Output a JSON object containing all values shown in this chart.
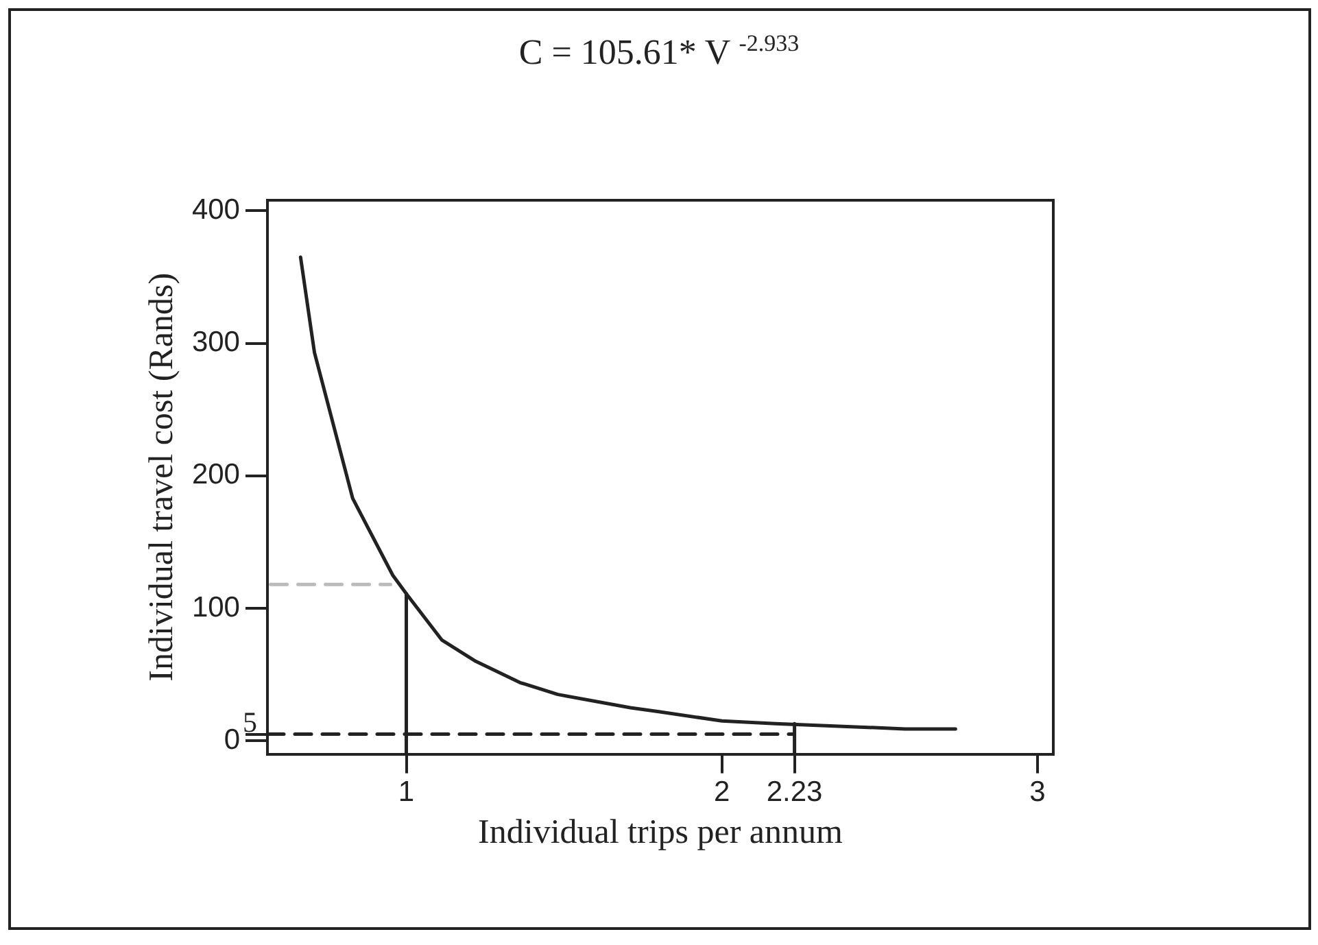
{
  "chart_data": {
    "type": "line",
    "title": "C = 105.61* V $^{-2.933}$",
    "xlabel": "Individual trips per annum",
    "ylabel": "Individual travel cost (Rands)",
    "xlim": [
      0.56,
      3.05
    ],
    "xticks": [
      1,
      2,
      2.23,
      3
    ],
    "ylim": [
      -10,
      408
    ],
    "yticks": [
      0,
      {
        "value": 5,
        "label": null
      },
      100,
      200,
      300,
      400
    ],
    "marker": "none",
    "annotations": [
      "5"
    ],
    "series": [
      {
        "color": "#222222",
        "line_style": "solid",
        "x": [
          0.665,
          0.709,
          0.83,
          0.957,
          1.0,
          1.113,
          1.22,
          1.36,
          1.48,
          1.71,
          1.8,
          2.0,
          2.17,
          2.58,
          2.74
        ],
        "values": [
          365,
          293,
          183,
          125,
          111,
          76,
          60,
          44,
          35,
          25,
          22,
          15,
          13,
          9,
          9
        ]
      },
      {
        "color": "#222222",
        "line_style": "dashed",
        "x": [
          0.56,
          2.23
        ],
        "values": [
          5,
          5
        ]
      },
      {
        "color": "#222222",
        "line_style": "solid",
        "x": [
          1,
          1
        ],
        "values": [
          -10,
          111
        ]
      },
      {
        "color": "#222222",
        "line_style": "solid",
        "x": [
          2.23,
          2.23
        ],
        "values": [
          -10,
          13
        ]
      },
      {
        "color": "#bbbbbb",
        "line_style": "dashed",
        "x": [
          0.57,
          0.95
        ],
        "values": [
          118,
          118
        ]
      }
    ]
  }
}
